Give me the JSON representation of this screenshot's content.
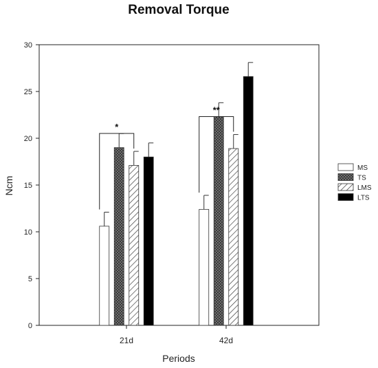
{
  "chart_data": {
    "type": "bar",
    "title": "Removal Torque",
    "xlabel": "Periods",
    "ylabel": "Ncm",
    "ylim": [
      0,
      30
    ],
    "yticks": [
      0,
      5,
      10,
      15,
      20,
      25,
      30
    ],
    "categories": [
      "21d",
      "42d"
    ],
    "series": [
      {
        "name": "MS",
        "pattern": "white",
        "values": [
          10.6,
          12.4
        ],
        "errors": [
          1.5,
          1.5
        ]
      },
      {
        "name": "TS",
        "pattern": "checker",
        "values": [
          19.0,
          22.3
        ],
        "errors": [
          1.5,
          1.5
        ]
      },
      {
        "name": "LMS",
        "pattern": "diagonal",
        "values": [
          17.1,
          18.9
        ],
        "errors": [
          1.5,
          1.5
        ]
      },
      {
        "name": "LTS",
        "pattern": "black",
        "values": [
          18.0,
          26.6
        ],
        "errors": [
          1.5,
          1.5
        ]
      }
    ],
    "annotations": [
      {
        "category": "21d",
        "text": "*",
        "from_series": "MS",
        "to_series": "LMS"
      },
      {
        "category": "42d",
        "text": "**",
        "from_series": "MS",
        "to_series": "LMS"
      }
    ],
    "legend_position": "right",
    "grid": false
  }
}
